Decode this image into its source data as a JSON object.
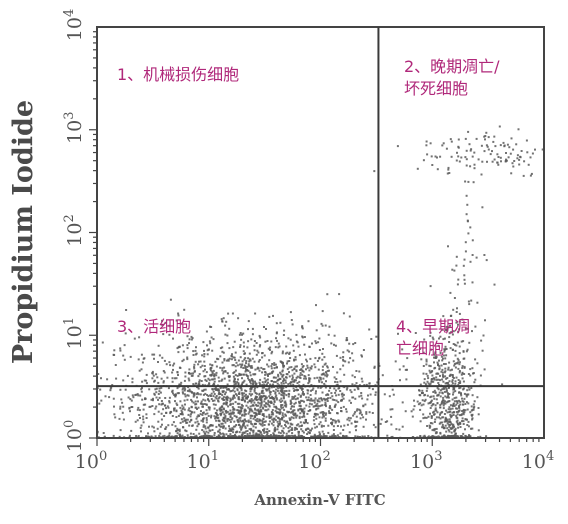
{
  "chart_data": {
    "type": "scatter",
    "title": "",
    "xlabel": "Annexin-V FITC",
    "ylabel": "Propidium Iodide",
    "x_scale": "log",
    "y_scale": "log",
    "xlim": [
      1,
      10000
    ],
    "ylim": [
      1,
      10000
    ],
    "x_ticks": [
      {
        "base": "10",
        "exp": "0",
        "value": 1
      },
      {
        "base": "10",
        "exp": "1",
        "value": 10
      },
      {
        "base": "10",
        "exp": "2",
        "value": 100
      },
      {
        "base": "10",
        "exp": "3",
        "value": 1000
      },
      {
        "base": "10",
        "exp": "4",
        "value": 10000
      }
    ],
    "y_ticks": [
      {
        "base": "10",
        "exp": "0",
        "value": 1
      },
      {
        "base": "10",
        "exp": "1",
        "value": 10
      },
      {
        "base": "10",
        "exp": "2",
        "value": 100
      },
      {
        "base": "10",
        "exp": "3",
        "value": 1000
      },
      {
        "base": "10",
        "exp": "4",
        "value": 10000
      }
    ],
    "gates": {
      "x": 330,
      "y": 3.2
    },
    "quadrants": [
      {
        "id": "q1",
        "lines": [
          "1、机械损伤细胞"
        ]
      },
      {
        "id": "q2",
        "lines": [
          "2、晚期凋亡/",
          "坏死细胞"
        ]
      },
      {
        "id": "q3",
        "lines": [
          "3、活细胞"
        ]
      },
      {
        "id": "q4",
        "lines": [
          "4、早期凋",
          "亡细胞"
        ]
      }
    ],
    "populations": [
      {
        "name": "",
        "x_center": 25,
        "y_center": 2.2,
        "x_spread_decades": 0.55,
        "y_spread_decades": 0.32,
        "count": 2600
      },
      {
        "name": "",
        "x_center": 1400,
        "y_center": 2.4,
        "x_spread_decades": 0.12,
        "y_spread_decades": 0.35,
        "count": 650
      },
      {
        "name": "",
        "x_center": 3000,
        "y_center": 600,
        "x_spread_decades": 0.3,
        "y_spread_decades": 0.12,
        "count": 120
      },
      {
        "name": "",
        "x_center": 2200,
        "y_center": 40,
        "x_spread_decades": 0.1,
        "y_spread_decades": 0.5,
        "count": 45
      }
    ],
    "grid": false,
    "legend": "none",
    "point_color": "#5a5a5a",
    "gate_color": "#3a3a3a",
    "label_color": "#b0287a"
  }
}
